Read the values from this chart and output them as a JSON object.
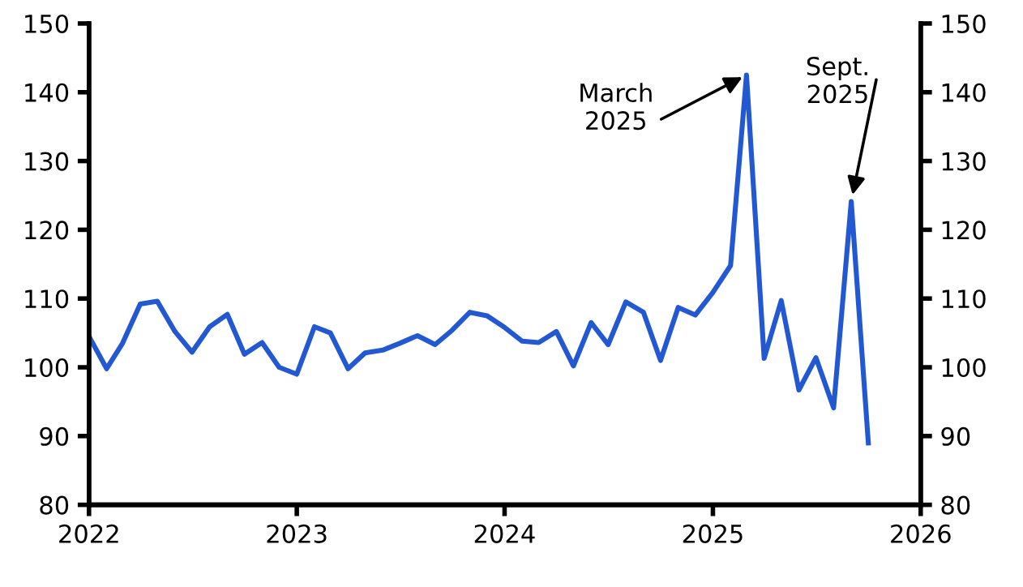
{
  "chart_data": {
    "type": "line",
    "x": [
      "2022-01",
      "2022-02",
      "2022-03",
      "2022-04",
      "2022-05",
      "2022-06",
      "2022-07",
      "2022-08",
      "2022-09",
      "2022-10",
      "2022-11",
      "2022-12",
      "2023-01",
      "2023-02",
      "2023-03",
      "2023-04",
      "2023-05",
      "2023-06",
      "2023-07",
      "2023-08",
      "2023-09",
      "2023-10",
      "2023-11",
      "2023-12",
      "2024-01",
      "2024-02",
      "2024-03",
      "2024-04",
      "2024-05",
      "2024-06",
      "2024-07",
      "2024-08",
      "2024-09",
      "2024-10",
      "2024-11",
      "2024-12",
      "2025-01",
      "2025-02",
      "2025-03",
      "2025-04",
      "2025-05",
      "2025-06",
      "2025-07",
      "2025-08",
      "2025-09",
      "2025-10"
    ],
    "series": [
      {
        "color": "#2358d3",
        "values": [
          104.5,
          99.8,
          103.5,
          109.2,
          109.6,
          105.2,
          102.2,
          105.9,
          107.7,
          101.9,
          103.6,
          100.0,
          99.0,
          105.9,
          105.0,
          99.8,
          102.1,
          102.5,
          103.5,
          104.6,
          103.3,
          105.4,
          108.0,
          107.5,
          105.8,
          103.8,
          103.6,
          105.2,
          100.2,
          106.5,
          103.3,
          109.5,
          108.0,
          101.0,
          108.7,
          107.6,
          110.9,
          114.8,
          142.5,
          101.3,
          109.7,
          96.7,
          101.4,
          94.1,
          124.1,
          89.0
        ]
      }
    ],
    "xlim": [
      "2022",
      "2026"
    ],
    "xticks": [
      "2022",
      "2023",
      "2024",
      "2025",
      "2026"
    ],
    "ylim": [
      80,
      150
    ],
    "yticks": [
      80,
      90,
      100,
      110,
      120,
      130,
      140,
      150
    ],
    "y2lim": [
      80,
      150
    ],
    "y2ticks": [
      80,
      90,
      100,
      110,
      120,
      130,
      140,
      150
    ],
    "annotations": [
      {
        "text": "March\n2025",
        "x": "2025-03",
        "y": 142.5
      },
      {
        "text": "Sept.\n2025",
        "x": "2025-09",
        "y": 124.1
      }
    ],
    "grid": false,
    "legend": false,
    "marker": "none",
    "line_style": "solid"
  }
}
